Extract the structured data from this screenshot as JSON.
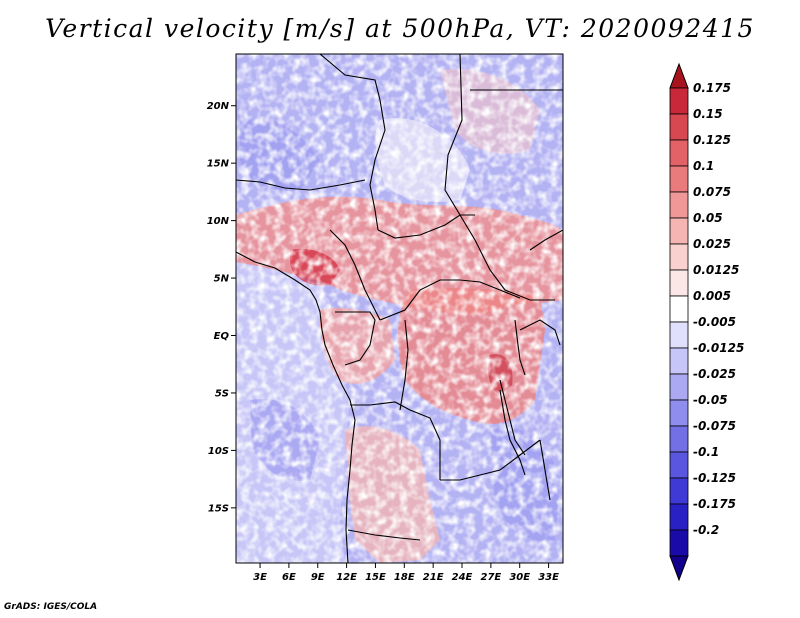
{
  "title": "Vertical velocity [m/s] at 500hPa, VT: 2020092415",
  "credit": "GrADS: IGES/COLA",
  "map": {
    "lat_labels": [
      "20N",
      "15N",
      "10N",
      "5N",
      "EQ",
      "5S",
      "10S",
      "15S"
    ],
    "lat_values": [
      20,
      15,
      10,
      5,
      0,
      -5,
      -10,
      -15
    ],
    "lon_labels": [
      "3E",
      "6E",
      "9E",
      "12E",
      "15E",
      "18E",
      "21E",
      "24E",
      "27E",
      "30E",
      "33E"
    ],
    "lon_values": [
      3,
      6,
      9,
      12,
      15,
      18,
      21,
      24,
      27,
      30,
      33
    ],
    "lon_range": [
      0.5,
      34.5
    ],
    "lat_range": [
      -19.8,
      24.5
    ]
  },
  "colorbar": {
    "labels": [
      "0.175",
      "0.15",
      "0.125",
      "0.1",
      "0.075",
      "0.05",
      "0.025",
      "0.0125",
      "0.005",
      "-0.005",
      "-0.0125",
      "-0.025",
      "-0.05",
      "-0.075",
      "-0.1",
      "-0.125",
      "-0.175",
      "-0.2"
    ],
    "colors": [
      "#a8141e",
      "#c8283a",
      "#d84850",
      "#e26268",
      "#e97b7c",
      "#f09898",
      "#f5b5b3",
      "#f9d2d0",
      "#fbe8e6",
      "#ffffff",
      "#e0e0fc",
      "#c7c6f8",
      "#aaa9f2",
      "#8f8ded",
      "#7370e6",
      "#5a56df",
      "#3f3ad6",
      "#2a21c4",
      "#1a0aa8",
      "#12008c"
    ]
  }
}
